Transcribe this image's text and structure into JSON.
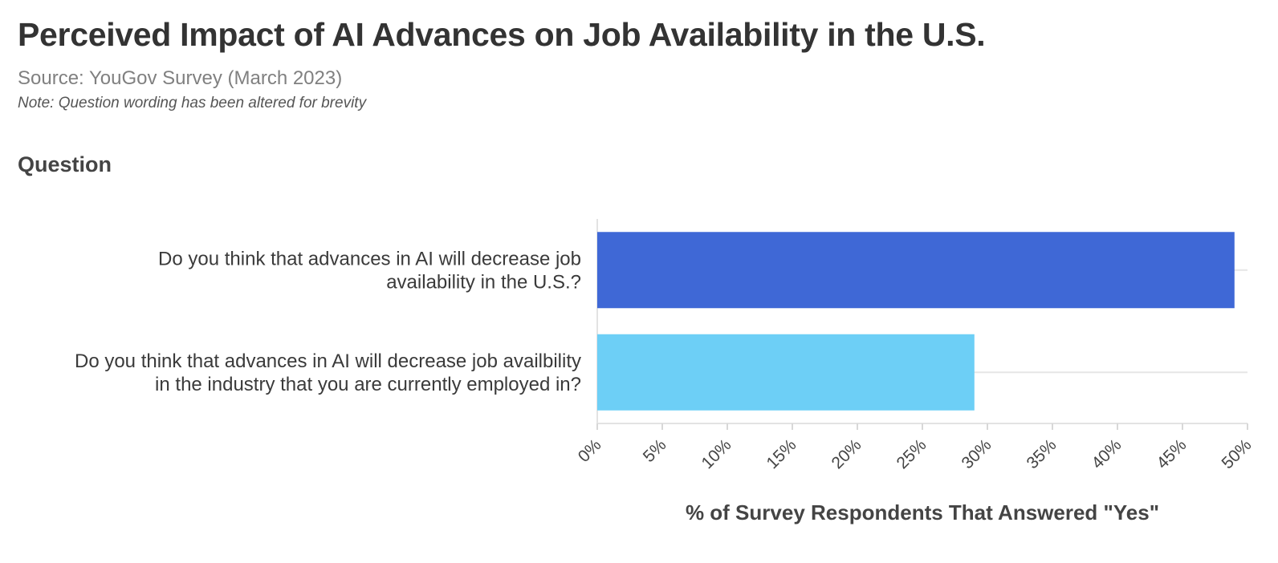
{
  "chart_data": {
    "type": "bar",
    "orientation": "horizontal",
    "title": "Perceived Impact of AI Advances on Job Availability in the U.S.",
    "subtitle": "Source: YouGov Survey (March 2023)",
    "note": "Note: Question wording has been altered for brevity",
    "ylabel": "Question",
    "xlabel": "% of Survey Respondents That Answered \"Yes\"",
    "categories": [
      [
        "Do you think that advances in AI will decrease job",
        "availability in the U.S.?"
      ],
      [
        "Do you think that advances in AI will decrease job availbility",
        "in the industry that you are currently employed in?"
      ]
    ],
    "values": [
      49,
      29
    ],
    "colors": [
      "#3f68d6",
      "#6dcff6"
    ],
    "xlim": [
      0,
      50
    ],
    "xticks": [
      "0%",
      "5%",
      "10%",
      "15%",
      "20%",
      "25%",
      "30%",
      "35%",
      "40%",
      "45%",
      "50%"
    ],
    "grid": true,
    "legend": "none"
  }
}
